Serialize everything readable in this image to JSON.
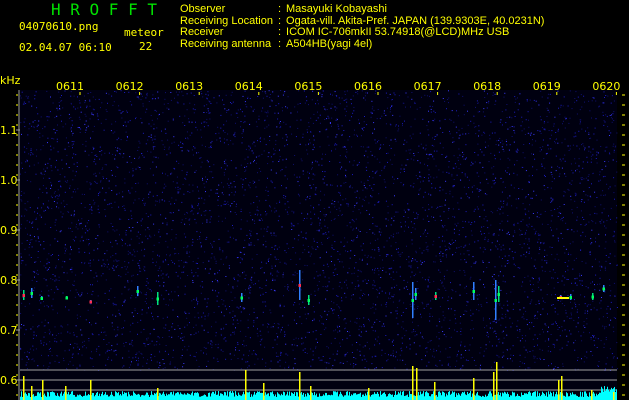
{
  "header": {
    "app_title": "H R O F F T",
    "filename": "04070610.png",
    "datetime": "02.04.07 06:10",
    "meteor_label": "meteor",
    "meteor_count": "22",
    "info": [
      {
        "label": "Observer",
        "value": "Masayuki Kobayashi"
      },
      {
        "label": "Receiving Location",
        "value": "Ogata-vill. Akita-Pref. JAPAN (139.9303E, 40.0231N)"
      },
      {
        "label": "Receiver",
        "value": "ICOM IC-706mkII 53.74918(@LCD)MHz USB"
      },
      {
        "label": "Receiving antenna",
        "value": "A504HB(yagi 4el)"
      }
    ]
  },
  "spectrogram": {
    "y_unit": "kHz",
    "y_ticks": [
      "1.1",
      "1.0",
      "0.9",
      "0.8",
      "0.7",
      "0.6"
    ],
    "x_ticks": [
      "0611",
      "0612",
      "0613",
      "0614",
      "0615",
      "0616",
      "0617",
      "0618",
      "0619",
      "0620"
    ],
    "colors": {
      "text": "#ffff00",
      "title": "#00e000",
      "background": "#000010",
      "noise": "#1a1aff",
      "level_bar": "#00ffff",
      "meteor_bar": "#ffff00",
      "guide_line": "#a0a0a0"
    }
  }
}
